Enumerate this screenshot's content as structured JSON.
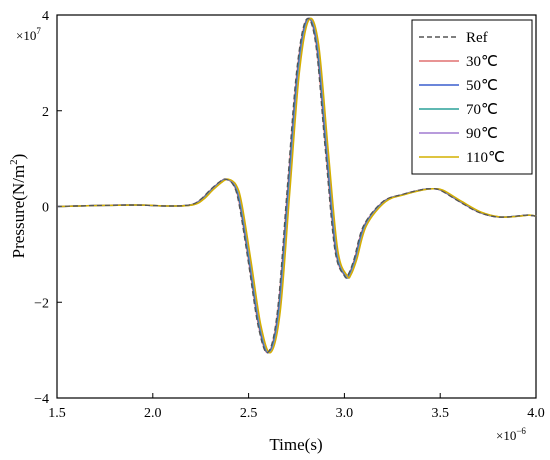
{
  "chart_data": {
    "type": "line",
    "xlabel": "Time(s)",
    "ylabel_main": "Pressure(N/m",
    "ylabel_sup": "2",
    "ylabel_close": ")",
    "x_multiplier": "×10",
    "x_multiplier_exp": "−6",
    "y_multiplier": "×10",
    "y_multiplier_exp": "7",
    "xlim": [
      1.5,
      4.0
    ],
    "ylim": [
      -4,
      4
    ],
    "xticks": [
      1.5,
      2.0,
      2.5,
      3.0,
      3.5,
      4.0
    ],
    "xtick_labels": [
      "1.5",
      "2.0",
      "2.5",
      "3.0",
      "3.5",
      "4.0"
    ],
    "yticks": [
      -4,
      -2,
      0,
      2,
      4
    ],
    "ytick_labels": [
      "−4",
      "−2",
      "0",
      "2",
      "4"
    ],
    "legend_position": "top-right",
    "base_curve": {
      "x": [
        1.5,
        1.7,
        1.9,
        2.1,
        2.2,
        2.25,
        2.3,
        2.35,
        2.38,
        2.42,
        2.45,
        2.5,
        2.55,
        2.6,
        2.65,
        2.7,
        2.75,
        2.8,
        2.85,
        2.9,
        2.95,
        3.0,
        3.02,
        3.05,
        3.1,
        3.2,
        3.3,
        3.4,
        3.45,
        3.5,
        3.6,
        3.7,
        3.8,
        3.9,
        3.95,
        4.0
      ],
      "y": [
        0.0,
        0.02,
        0.03,
        0.01,
        0.04,
        0.15,
        0.35,
        0.52,
        0.57,
        0.45,
        0.05,
        -1.2,
        -2.5,
        -3.05,
        -2.2,
        0.3,
        2.8,
        3.9,
        3.4,
        1.2,
        -0.9,
        -1.45,
        -1.42,
        -1.1,
        -0.4,
        0.1,
        0.25,
        0.35,
        0.37,
        0.34,
        0.1,
        -0.12,
        -0.22,
        -0.2,
        -0.18,
        -0.2
      ]
    },
    "series": [
      {
        "name": "Ref",
        "color": "#555555",
        "dash": true,
        "x_shift": 0.0
      },
      {
        "name": "30℃",
        "color": "#e07070",
        "dash": false,
        "x_shift": 0.003
      },
      {
        "name": "50℃",
        "color": "#3a5fcd",
        "dash": false,
        "x_shift": 0.006
      },
      {
        "name": "70℃",
        "color": "#2aa198",
        "dash": false,
        "x_shift": 0.009
      },
      {
        "name": "90℃",
        "color": "#a07ad0",
        "dash": false,
        "x_shift": 0.012
      },
      {
        "name": "110℃",
        "color": "#d4b000",
        "dash": false,
        "x_shift": 0.015
      }
    ]
  }
}
